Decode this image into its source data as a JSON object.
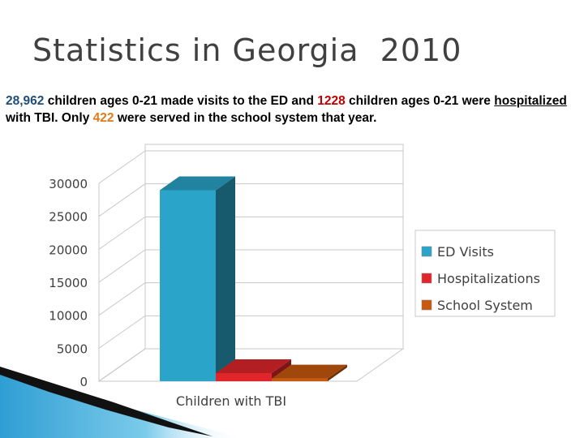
{
  "slide": {
    "title": "Statistics in Georgia  2010",
    "para": {
      "n_ed": "28,962",
      "t1": " children ages 0-21 made visits to the ED and ",
      "n_hosp": "1228",
      "t2": " children ages 0-21 were ",
      "t3": "hospitalized",
      "t4": " with TBI.  Only ",
      "n_school": "422",
      "t5": " were served in the school system that  year."
    }
  },
  "colors": {
    "ed": "#2aa4c8",
    "hosp": "#e0262b",
    "school": "#c8590e",
    "accent_blue": "#1f4e79",
    "accent_red": "#c00000",
    "accent_orange": "#e07b1a"
  },
  "chart_data": {
    "type": "bar",
    "style": "3d-column",
    "categories": [
      "Children with TBI"
    ],
    "xlabel": "Children with TBI",
    "ylim": [
      0,
      30000
    ],
    "yticks": [
      "0",
      "5000",
      "10000",
      "15000",
      "20000",
      "25000",
      "30000"
    ],
    "series": [
      {
        "name": "ED Visits",
        "values": [
          28962
        ]
      },
      {
        "name": "Hospitalizations",
        "values": [
          1228
        ]
      },
      {
        "name": "School System",
        "values": [
          422
        ]
      }
    ],
    "grid": true,
    "legend_position": "right"
  }
}
